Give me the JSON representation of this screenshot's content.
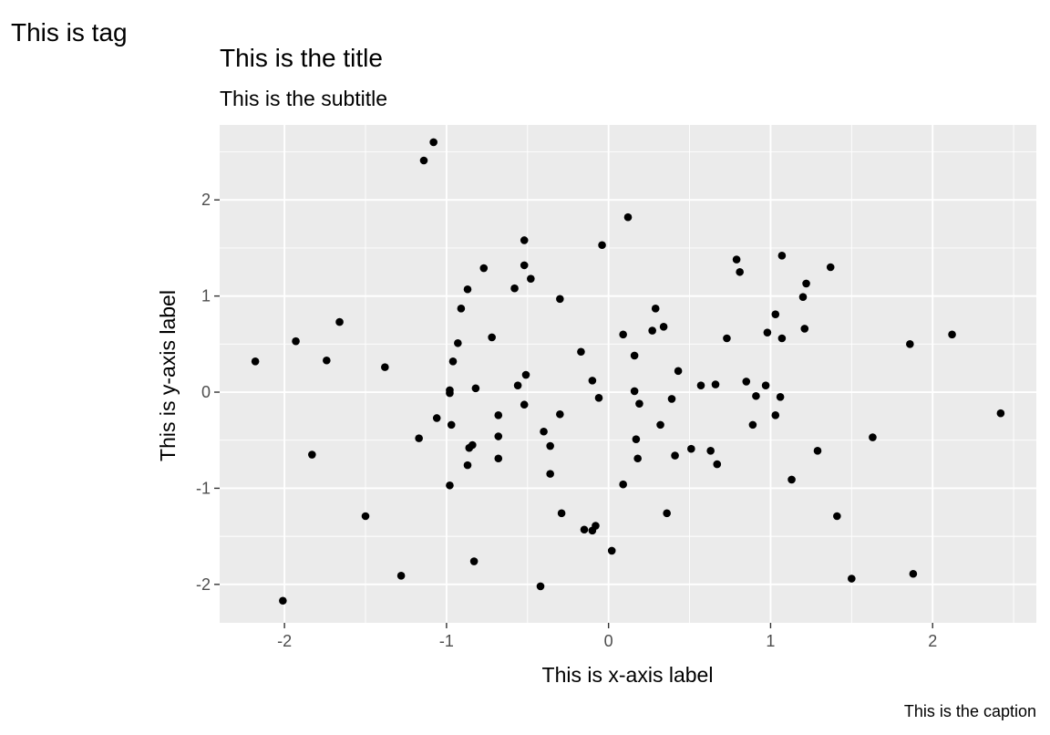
{
  "chart_data": {
    "type": "scatter",
    "tag": "This is tag",
    "title": "This is the title",
    "subtitle": "This is the subtitle",
    "xlabel": "This is x-axis label",
    "ylabel": "This is y-axis label",
    "caption": "This is the caption",
    "xlim": [
      -2.4,
      2.64
    ],
    "ylim": [
      -2.4,
      2.78
    ],
    "x_ticks": [
      -2,
      -1,
      0,
      1,
      2
    ],
    "y_ticks": [
      -2,
      -1,
      0,
      1,
      2
    ],
    "x_tick_labels": [
      "-2",
      "-1",
      "0",
      "1",
      "2"
    ],
    "y_tick_labels": [
      "-2",
      "-1",
      "0",
      "1",
      "2"
    ],
    "grid": true,
    "background_color": "#ebebeb",
    "grid_color": "#ffffff",
    "point_color": "#000000",
    "points": [
      {
        "x": -1.08,
        "y": 2.6
      },
      {
        "x": -1.14,
        "y": 2.41
      },
      {
        "x": 0.12,
        "y": 1.82
      },
      {
        "x": -0.52,
        "y": 1.58
      },
      {
        "x": -0.04,
        "y": 1.53
      },
      {
        "x": 1.07,
        "y": 1.42
      },
      {
        "x": 0.79,
        "y": 1.38
      },
      {
        "x": -0.52,
        "y": 1.32
      },
      {
        "x": 1.37,
        "y": 1.3
      },
      {
        "x": -0.77,
        "y": 1.29
      },
      {
        "x": 0.81,
        "y": 1.25
      },
      {
        "x": -0.48,
        "y": 1.18
      },
      {
        "x": 1.22,
        "y": 1.13
      },
      {
        "x": -0.87,
        "y": 1.07
      },
      {
        "x": -0.58,
        "y": 1.08
      },
      {
        "x": 1.2,
        "y": 0.99
      },
      {
        "x": -0.3,
        "y": 0.97
      },
      {
        "x": -0.91,
        "y": 0.87
      },
      {
        "x": 0.29,
        "y": 0.87
      },
      {
        "x": 1.03,
        "y": 0.81
      },
      {
        "x": -1.66,
        "y": 0.73
      },
      {
        "x": 0.34,
        "y": 0.68
      },
      {
        "x": 0.27,
        "y": 0.64
      },
      {
        "x": 1.21,
        "y": 0.66
      },
      {
        "x": 0.98,
        "y": 0.62
      },
      {
        "x": 2.12,
        "y": 0.6
      },
      {
        "x": 0.09,
        "y": 0.6
      },
      {
        "x": -0.72,
        "y": 0.57
      },
      {
        "x": 0.73,
        "y": 0.56
      },
      {
        "x": 1.07,
        "y": 0.56
      },
      {
        "x": -1.93,
        "y": 0.53
      },
      {
        "x": -0.93,
        "y": 0.51
      },
      {
        "x": 1.86,
        "y": 0.5
      },
      {
        "x": -0.17,
        "y": 0.42
      },
      {
        "x": 0.16,
        "y": 0.38
      },
      {
        "x": -2.18,
        "y": 0.32
      },
      {
        "x": -1.74,
        "y": 0.33
      },
      {
        "x": -0.96,
        "y": 0.32
      },
      {
        "x": -1.38,
        "y": 0.26
      },
      {
        "x": 0.43,
        "y": 0.22
      },
      {
        "x": -0.51,
        "y": 0.18
      },
      {
        "x": -0.1,
        "y": 0.12
      },
      {
        "x": 0.85,
        "y": 0.11
      },
      {
        "x": -0.56,
        "y": 0.07
      },
      {
        "x": 0.57,
        "y": 0.07
      },
      {
        "x": 0.66,
        "y": 0.08
      },
      {
        "x": 0.97,
        "y": 0.07
      },
      {
        "x": -0.82,
        "y": 0.04
      },
      {
        "x": -0.98,
        "y": 0.02
      },
      {
        "x": -0.98,
        "y": -0.01
      },
      {
        "x": 0.16,
        "y": 0.01
      },
      {
        "x": -0.06,
        "y": -0.06
      },
      {
        "x": 0.39,
        "y": -0.07
      },
      {
        "x": 0.91,
        "y": -0.04
      },
      {
        "x": 1.06,
        "y": -0.05
      },
      {
        "x": 0.19,
        "y": -0.12
      },
      {
        "x": -0.52,
        "y": -0.13
      },
      {
        "x": -0.68,
        "y": -0.24
      },
      {
        "x": -0.3,
        "y": -0.23
      },
      {
        "x": 1.03,
        "y": -0.24
      },
      {
        "x": 2.42,
        "y": -0.22
      },
      {
        "x": -1.06,
        "y": -0.27
      },
      {
        "x": -0.97,
        "y": -0.34
      },
      {
        "x": 0.32,
        "y": -0.34
      },
      {
        "x": 0.89,
        "y": -0.34
      },
      {
        "x": -0.4,
        "y": -0.41
      },
      {
        "x": -0.68,
        "y": -0.46
      },
      {
        "x": -1.17,
        "y": -0.48
      },
      {
        "x": 0.17,
        "y": -0.49
      },
      {
        "x": 1.63,
        "y": -0.47
      },
      {
        "x": -0.36,
        "y": -0.56
      },
      {
        "x": -0.84,
        "y": -0.55
      },
      {
        "x": -0.86,
        "y": -0.58
      },
      {
        "x": 0.51,
        "y": -0.59
      },
      {
        "x": 0.63,
        "y": -0.61
      },
      {
        "x": 1.29,
        "y": -0.61
      },
      {
        "x": -1.83,
        "y": -0.65
      },
      {
        "x": 0.41,
        "y": -0.66
      },
      {
        "x": -0.68,
        "y": -0.69
      },
      {
        "x": 0.18,
        "y": -0.69
      },
      {
        "x": -0.87,
        "y": -0.76
      },
      {
        "x": 0.67,
        "y": -0.75
      },
      {
        "x": -0.36,
        "y": -0.85
      },
      {
        "x": 1.13,
        "y": -0.91
      },
      {
        "x": 0.09,
        "y": -0.96
      },
      {
        "x": -0.98,
        "y": -0.97
      },
      {
        "x": -0.29,
        "y": -1.26
      },
      {
        "x": 0.36,
        "y": -1.26
      },
      {
        "x": -1.5,
        "y": -1.29
      },
      {
        "x": 1.41,
        "y": -1.29
      },
      {
        "x": -0.08,
        "y": -1.39
      },
      {
        "x": -0.15,
        "y": -1.43
      },
      {
        "x": -0.1,
        "y": -1.44
      },
      {
        "x": 0.02,
        "y": -1.65
      },
      {
        "x": -0.83,
        "y": -1.76
      },
      {
        "x": -1.28,
        "y": -1.91
      },
      {
        "x": 1.88,
        "y": -1.89
      },
      {
        "x": 1.5,
        "y": -1.94
      },
      {
        "x": -0.42,
        "y": -2.02
      },
      {
        "x": -2.01,
        "y": -2.17
      }
    ]
  }
}
